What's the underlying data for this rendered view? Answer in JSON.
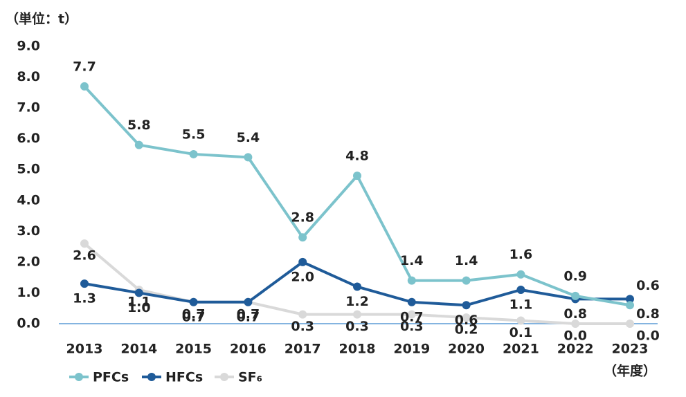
{
  "chart_data": {
    "type": "line",
    "y_label": "（単位：t）",
    "x_label": "（年度）",
    "categories": [
      "2013",
      "2014",
      "2015",
      "2016",
      "2017",
      "2018",
      "2019",
      "2020",
      "2021",
      "2022",
      "2023"
    ],
    "series": [
      {
        "name": "PFCs",
        "color": "#7cc3cc",
        "values": [
          7.7,
          5.8,
          5.5,
          5.4,
          2.8,
          4.8,
          1.4,
          1.4,
          1.6,
          0.9,
          0.6
        ],
        "value_labels": [
          "7.7",
          "5.8",
          "5.5",
          "5.4",
          "2.8",
          "4.8",
          "1.4",
          "1.4",
          "1.6",
          "0.9",
          "0.6"
        ]
      },
      {
        "name": "HFCs",
        "color": "#1f5b99",
        "values": [
          1.3,
          1.0,
          0.7,
          0.7,
          2.0,
          1.2,
          0.7,
          0.6,
          1.1,
          0.8,
          0.8
        ],
        "value_labels": [
          "1.3",
          "1.0",
          "0.7",
          "0.7",
          "2.0",
          "1.2",
          "0.7",
          "0.6",
          "1.1",
          "0.8",
          "0.8"
        ]
      },
      {
        "name": "SF₆",
        "color": "#d9d9d9",
        "values": [
          2.6,
          1.1,
          0.7,
          0.7,
          0.3,
          0.3,
          0.3,
          0.2,
          0.1,
          0.0,
          0.0
        ],
        "value_labels": [
          "2.6",
          "1.1",
          "0.7",
          "0.7",
          "0.3",
          "0.3",
          "0.3",
          "0.2",
          "0.1",
          "0.0",
          "0.0"
        ]
      }
    ],
    "ylim": [
      0,
      9
    ],
    "yticks": [
      {
        "value": 0,
        "label": "0.0"
      },
      {
        "value": 1,
        "label": "1.0"
      },
      {
        "value": 2,
        "label": "2.0"
      },
      {
        "value": 3,
        "label": "3.0"
      },
      {
        "value": 4,
        "label": "4.0"
      },
      {
        "value": 5,
        "label": "5.0"
      },
      {
        "value": 6,
        "label": "6.0"
      },
      {
        "value": 7,
        "label": "7.0"
      },
      {
        "value": 8,
        "label": "8.0"
      },
      {
        "value": 9,
        "label": "9.0"
      }
    ],
    "legend": "bottom-left"
  }
}
